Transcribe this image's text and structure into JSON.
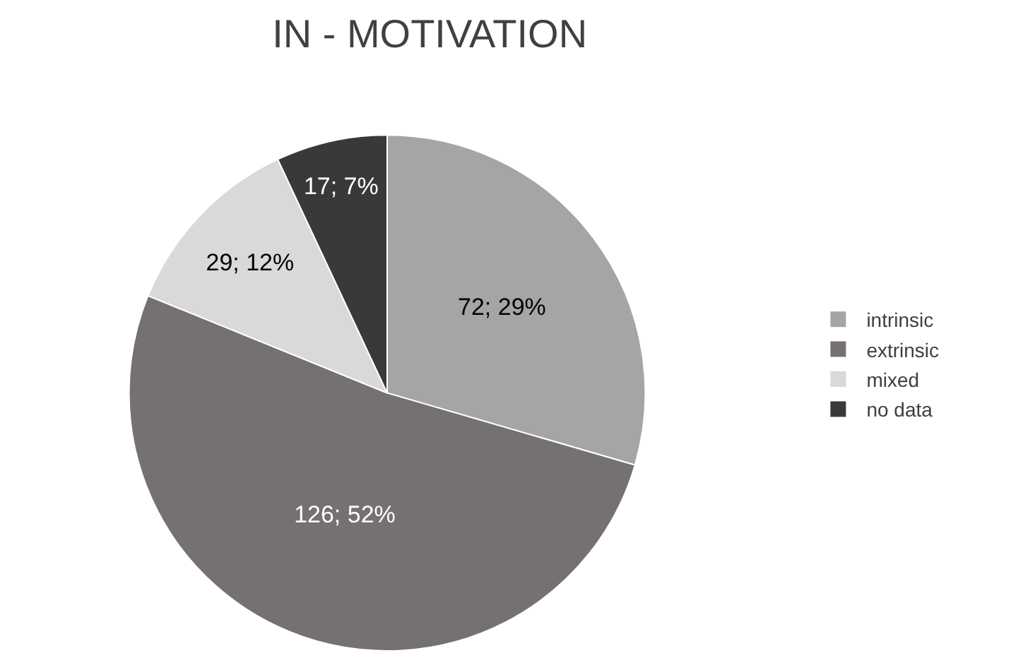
{
  "chart_data": {
    "type": "pie",
    "title": "IN - MOTIVATION",
    "categories": [
      "intrinsic",
      "extrinsic",
      "mixed",
      "no data"
    ],
    "values": [
      72,
      126,
      29,
      17
    ],
    "colors": [
      "#a5a5a5",
      "#767171",
      "#d9d9d9",
      "#3a3838"
    ],
    "value_labels": [
      "72; 29%",
      "126; 52%",
      "29; 12%",
      "17; 7%"
    ],
    "legend": "right"
  }
}
